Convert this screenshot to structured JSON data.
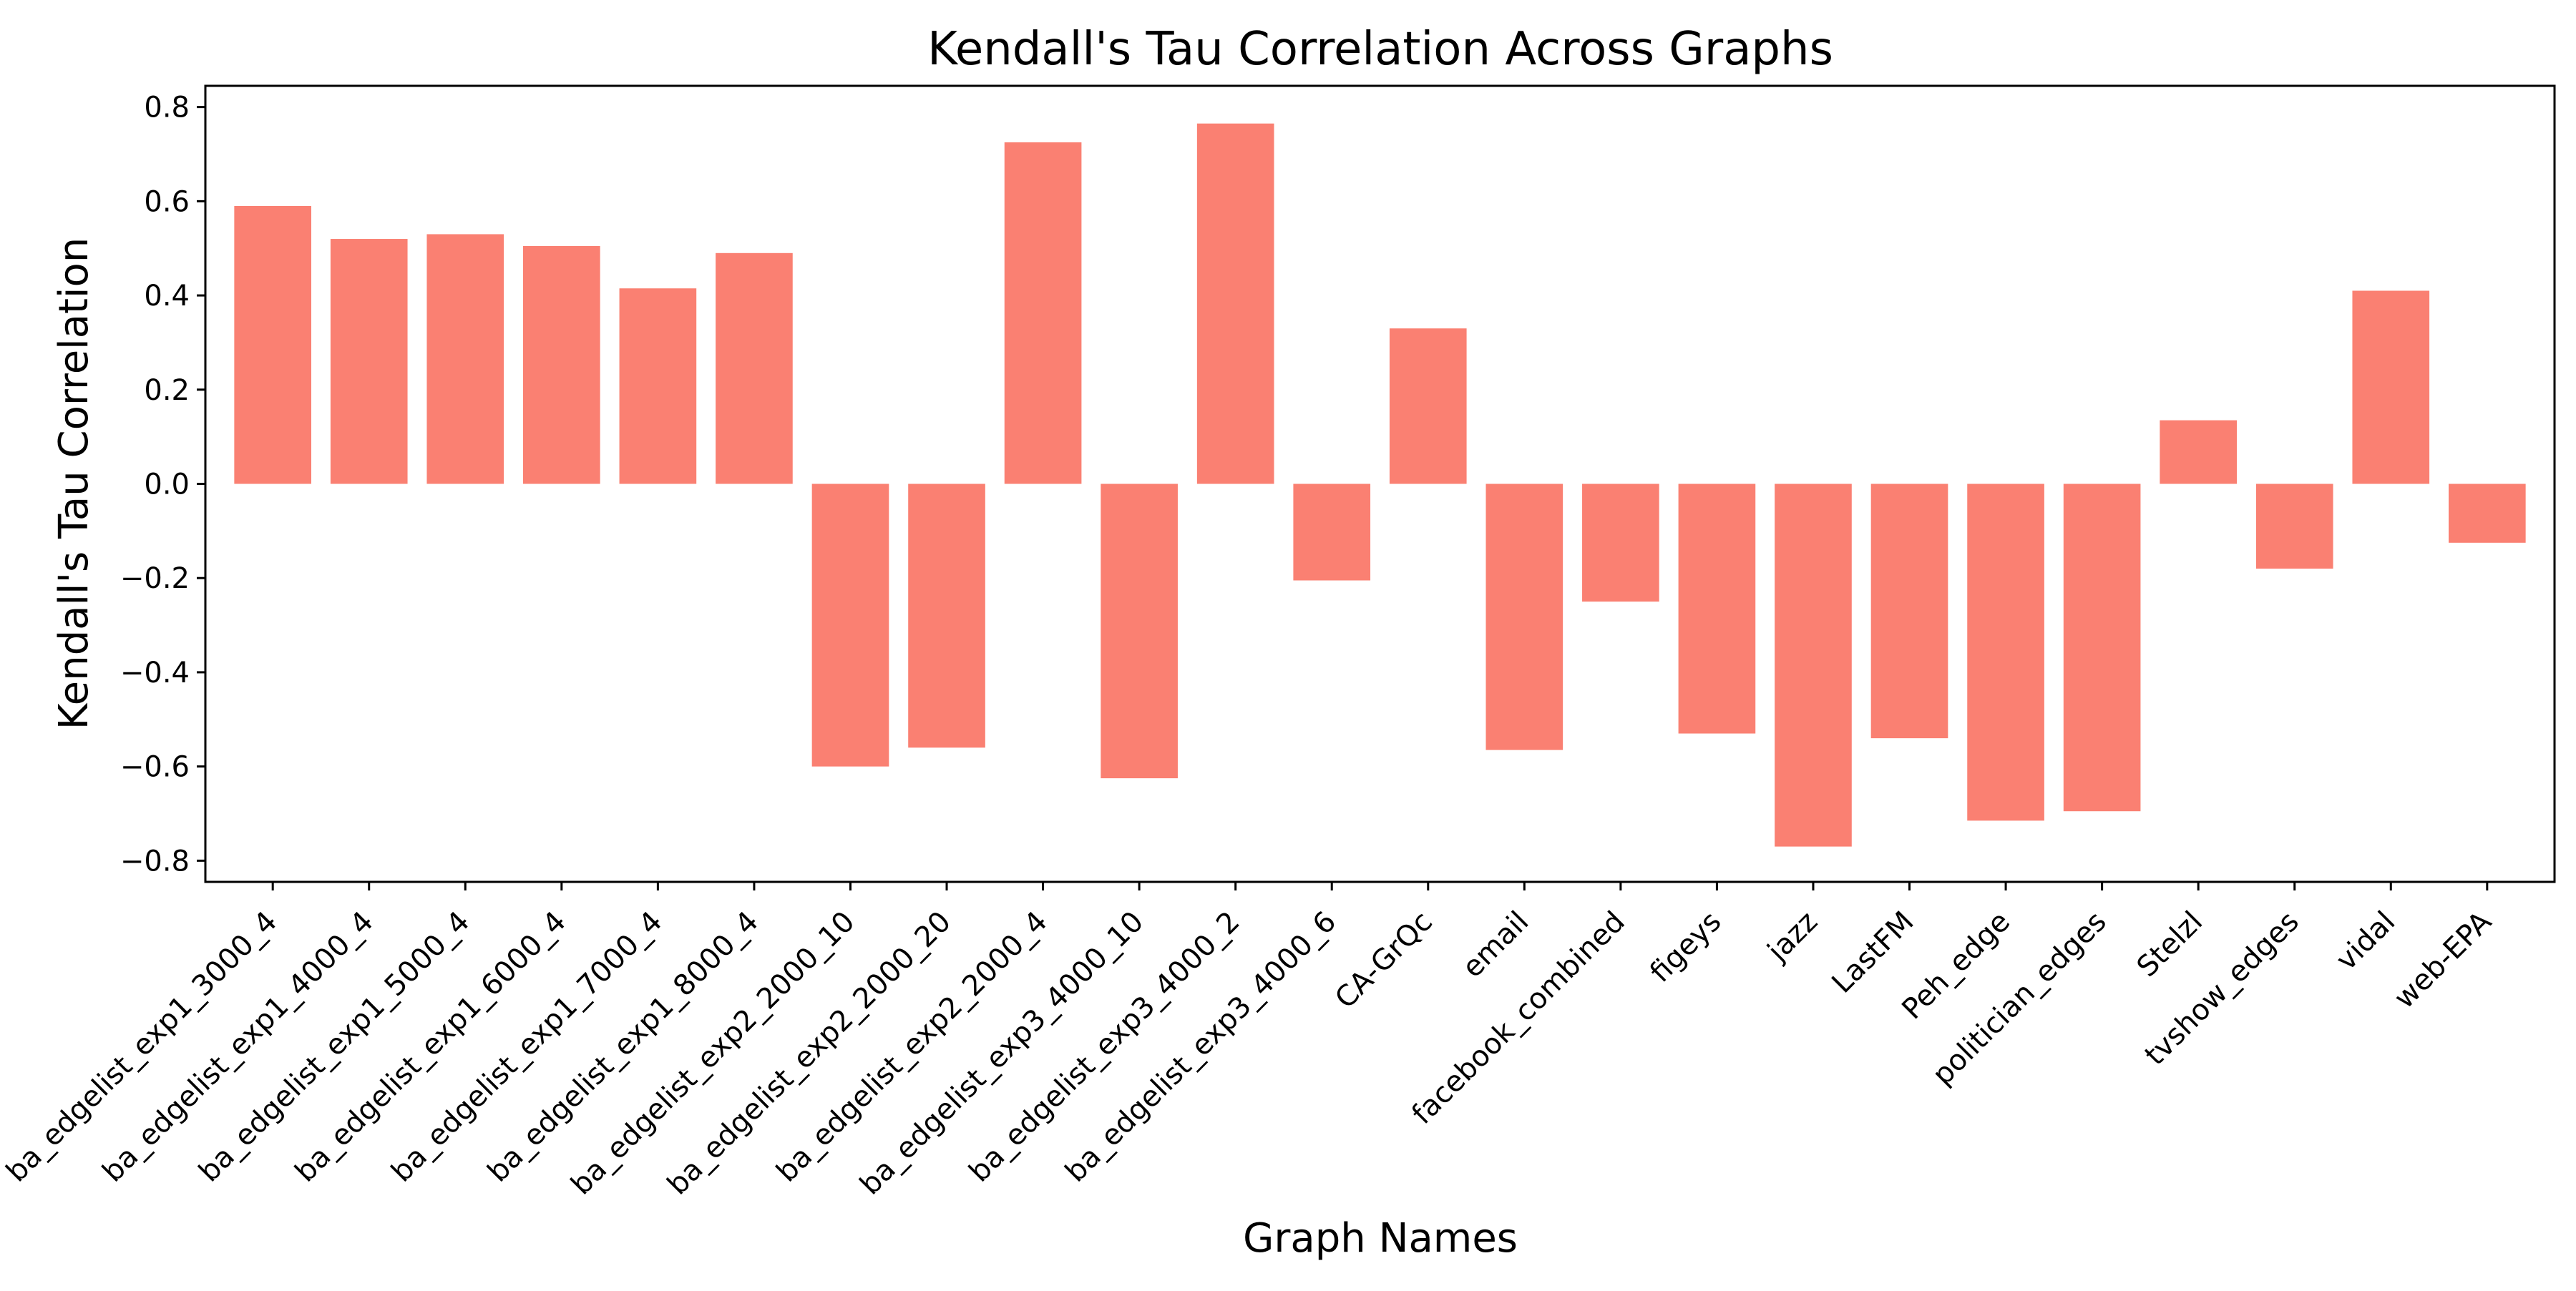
{
  "chart_data": {
    "type": "bar",
    "title": "Kendall's Tau Correlation Across Graphs",
    "xlabel": "Graph Names",
    "ylabel": "Kendall's Tau Correlation",
    "ylim": [
      -0.845,
      0.845
    ],
    "yticks": [
      "0.8",
      "0.6",
      "0.4",
      "0.2",
      "0.0",
      "−0.2",
      "−0.4",
      "−0.6",
      "−0.8"
    ],
    "ytick_values": [
      0.8,
      0.6,
      0.4,
      0.2,
      0.0,
      -0.2,
      -0.4,
      -0.6,
      -0.8
    ],
    "grid": false,
    "bar_color": "#fa8072",
    "categories": [
      "ba_edgelist_exp1_3000_4",
      "ba_edgelist_exp1_4000_4",
      "ba_edgelist_exp1_5000_4",
      "ba_edgelist_exp1_6000_4",
      "ba_edgelist_exp1_7000_4",
      "ba_edgelist_exp1_8000_4",
      "ba_edgelist_exp2_2000_10",
      "ba_edgelist_exp2_2000_20",
      "ba_edgelist_exp2_2000_4",
      "ba_edgelist_exp3_4000_10",
      "ba_edgelist_exp3_4000_2",
      "ba_edgelist_exp3_4000_6",
      "CA-GrQc",
      "email",
      "facebook_combined",
      "figeys",
      "jazz",
      "LastFM",
      "Peh_edge",
      "politician_edges",
      "Stelzl",
      "tvshow_edges",
      "vidal",
      "web-EPA"
    ],
    "values": [
      0.59,
      0.52,
      0.53,
      0.505,
      0.415,
      0.49,
      -0.6,
      -0.56,
      0.725,
      -0.625,
      0.765,
      -0.205,
      0.33,
      -0.565,
      -0.25,
      -0.53,
      -0.77,
      -0.54,
      -0.715,
      -0.695,
      0.135,
      -0.18,
      0.41,
      -0.125
    ]
  }
}
